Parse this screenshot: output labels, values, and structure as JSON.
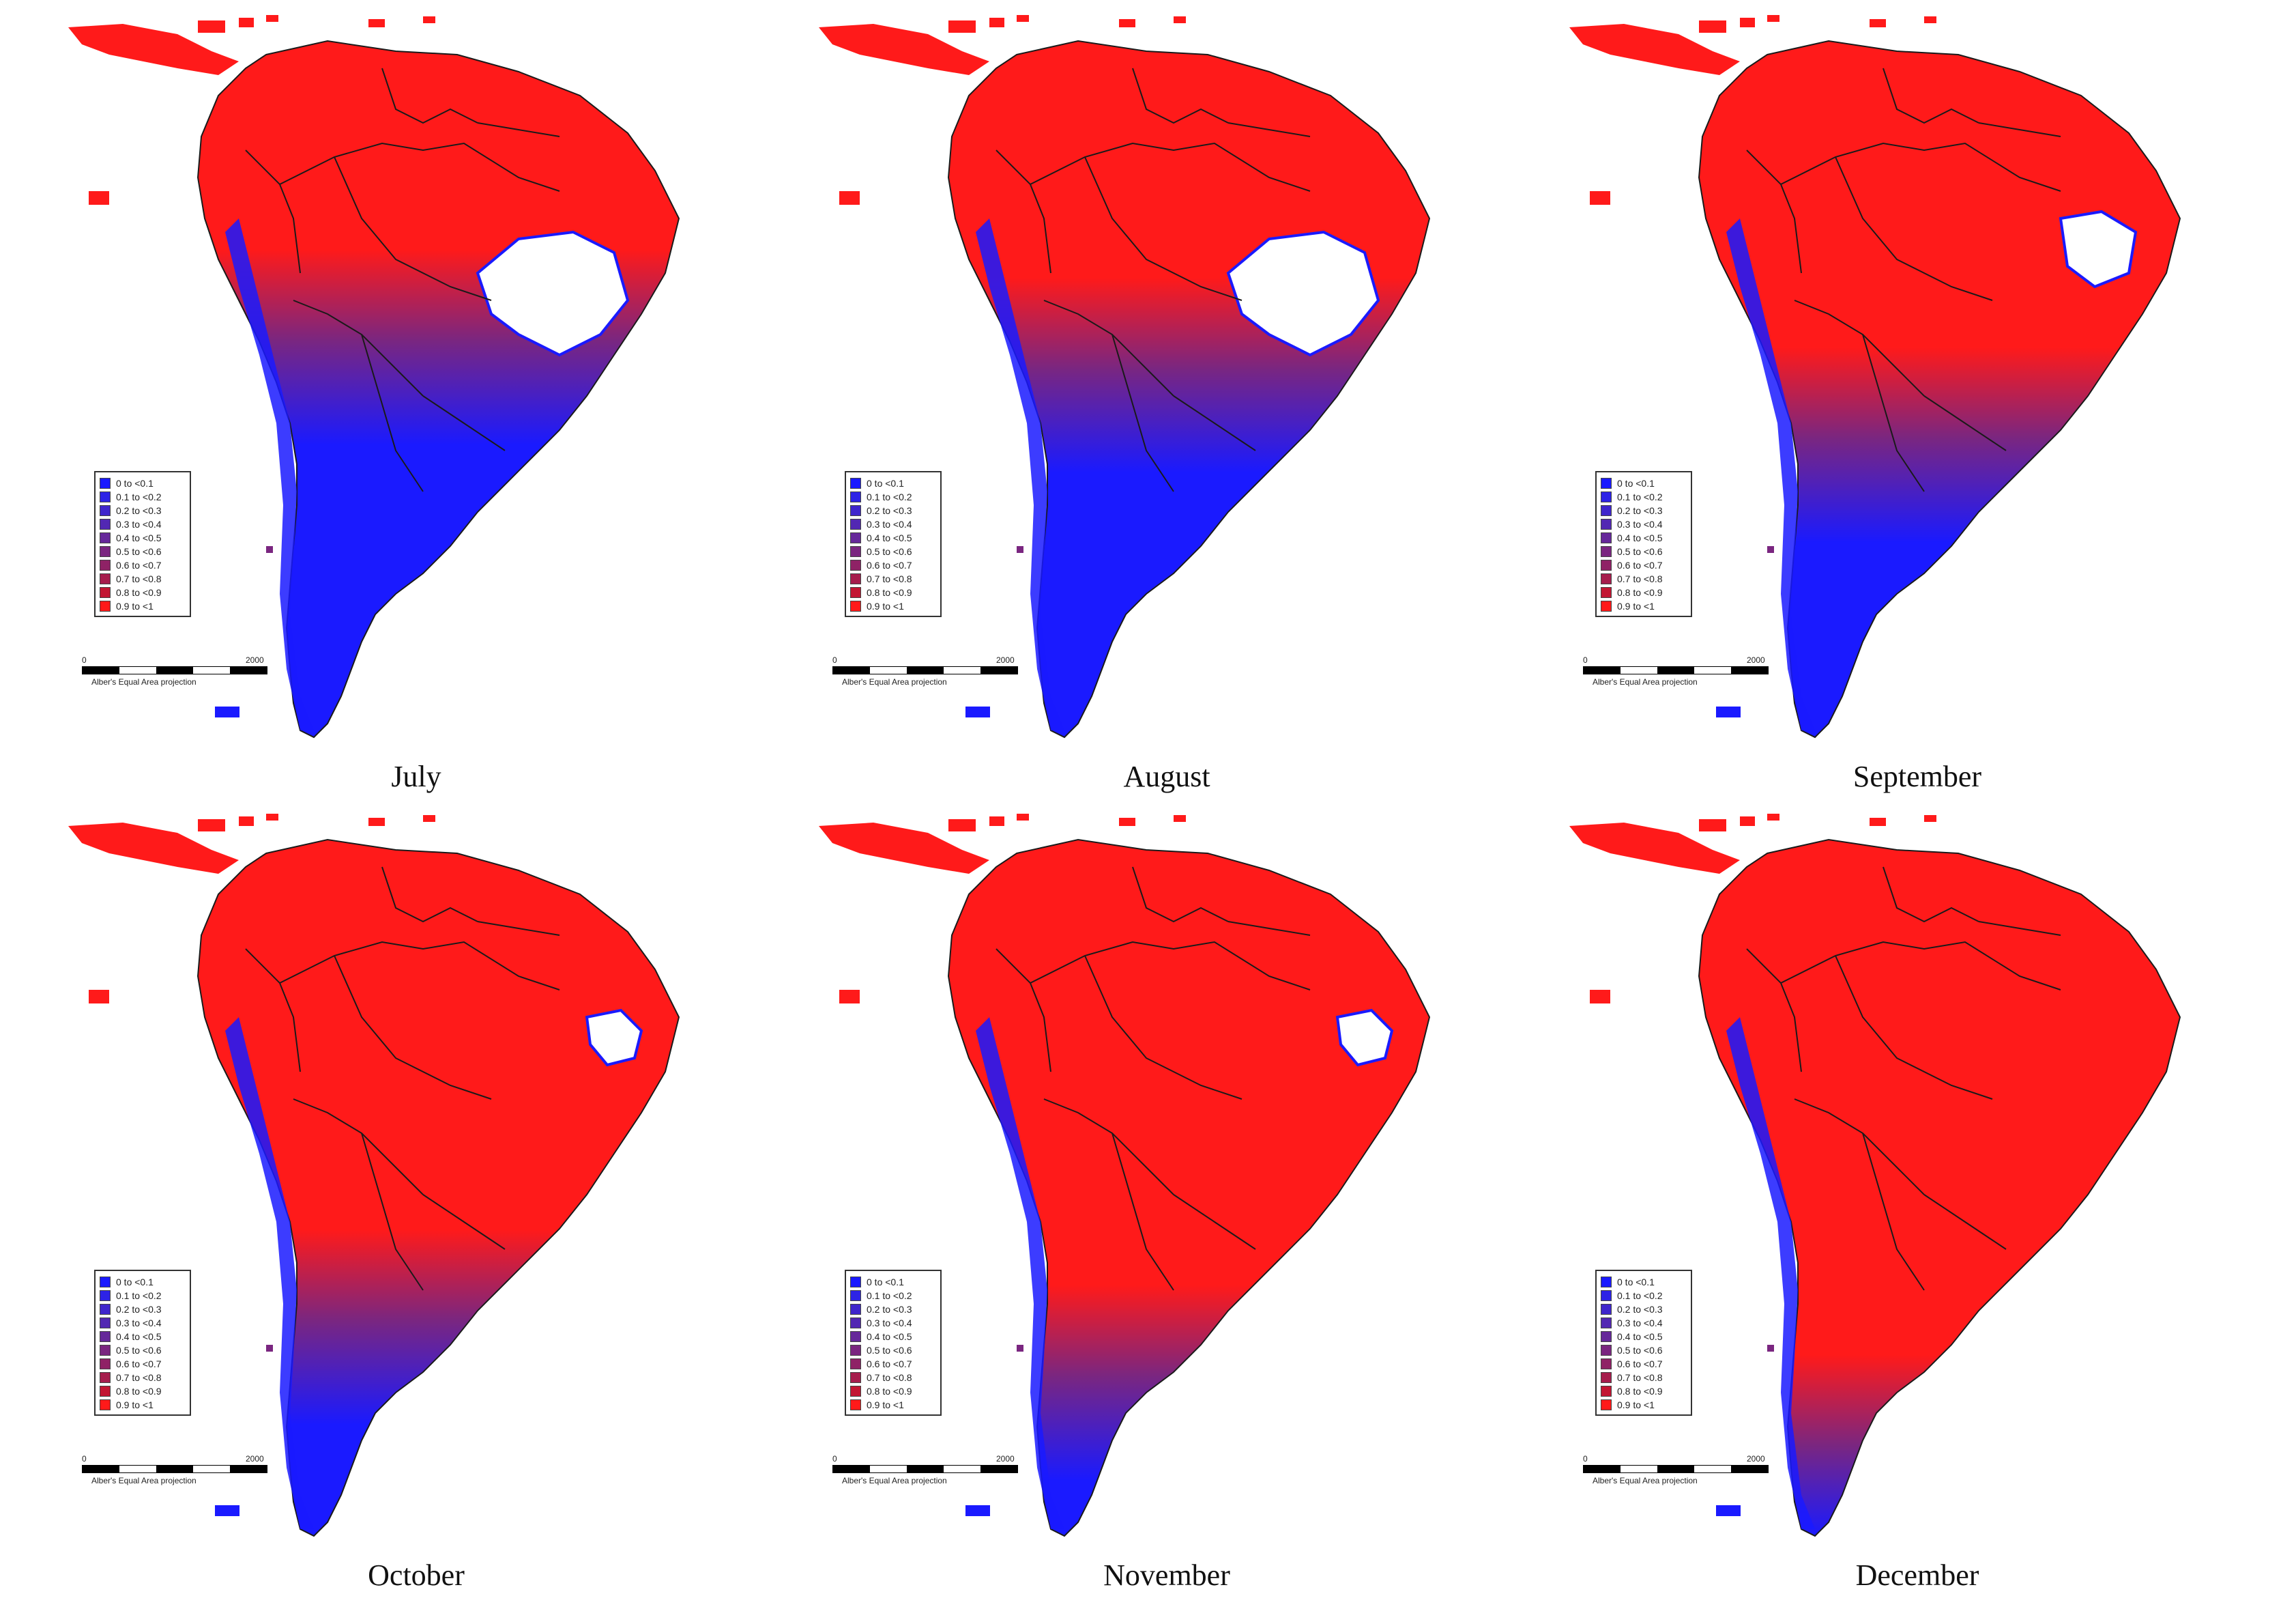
{
  "legend": {
    "classes": [
      {
        "label": "0 to <0.1",
        "color": "#1a1aff"
      },
      {
        "label": "0.1 to <0.2",
        "color": "#2d23e6"
      },
      {
        "label": "0.2 to <0.3",
        "color": "#3f26cc"
      },
      {
        "label": "0.3 to <0.4",
        "color": "#5228b3"
      },
      {
        "label": "0.4 to <0.5",
        "color": "#66289a"
      },
      {
        "label": "0.5 to <0.6",
        "color": "#7a2680"
      },
      {
        "label": "0.6 to <0.7",
        "color": "#8f2266"
      },
      {
        "label": "0.7 to <0.8",
        "color": "#a61d4d"
      },
      {
        "label": "0.8 to <0.9",
        "color": "#c21633"
      },
      {
        "label": "0.9 to <1",
        "color": "#ff1a1a"
      }
    ]
  },
  "scale": {
    "zero": "0",
    "max": "2000",
    "projection": "Alber's Equal Area projection"
  },
  "colors": {
    "high": "#ff1a1a",
    "low": "#1a1aff",
    "mid": "#7a2680",
    "nodata": "#ffffff",
    "border": "#1a1a1a"
  },
  "maps": [
    {
      "month": "July",
      "low_extent": 0.62,
      "dry_patch": "large"
    },
    {
      "month": "August",
      "low_extent": 0.58,
      "dry_patch": "large"
    },
    {
      "month": "September",
      "low_extent": 0.48,
      "dry_patch": "medium"
    },
    {
      "month": "October",
      "low_extent": 0.36,
      "dry_patch": "small"
    },
    {
      "month": "November",
      "low_extent": 0.28,
      "dry_patch": "small"
    },
    {
      "month": "December",
      "low_extent": 0.18,
      "dry_patch": "none"
    }
  ]
}
